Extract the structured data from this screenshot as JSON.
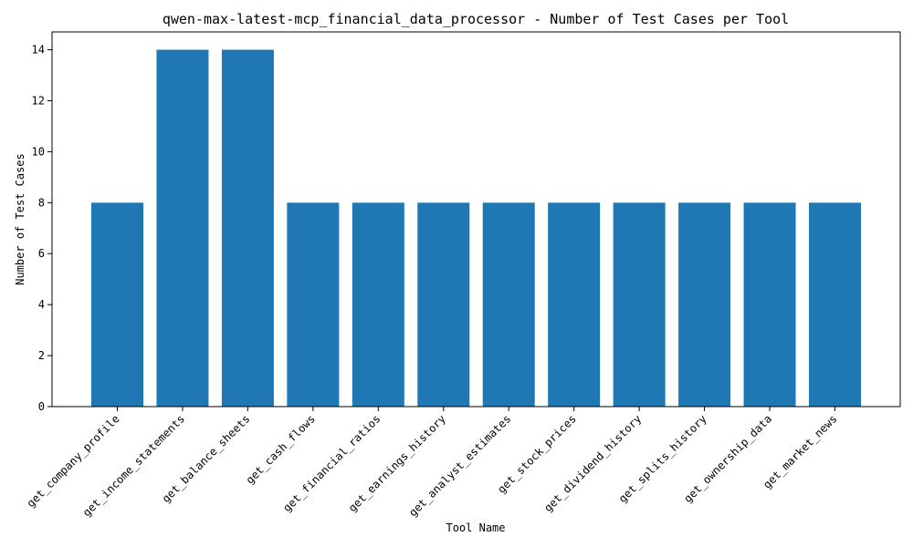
{
  "chart_data": {
    "type": "bar",
    "title": "qwen-max-latest-mcp_financial_data_processor - Number of Test Cases per Tool",
    "xlabel": "Tool Name",
    "ylabel": "Number of Test Cases",
    "categories": [
      "get_company_profile",
      "get_income_statements",
      "get_balance_sheets",
      "get_cash_flows",
      "get_financial_ratios",
      "get_earnings_history",
      "get_analyst_estimates",
      "get_stock_prices",
      "get_dividend_history",
      "get_splits_history",
      "get_ownership_data",
      "get_market_news"
    ],
    "values": [
      8,
      14,
      14,
      8,
      8,
      8,
      8,
      8,
      8,
      8,
      8,
      8
    ],
    "ylim": [
      0,
      14.7
    ],
    "yticks": [
      0,
      2,
      4,
      6,
      8,
      10,
      12,
      14
    ],
    "grid": false,
    "bar_color": "#1f77b4"
  }
}
